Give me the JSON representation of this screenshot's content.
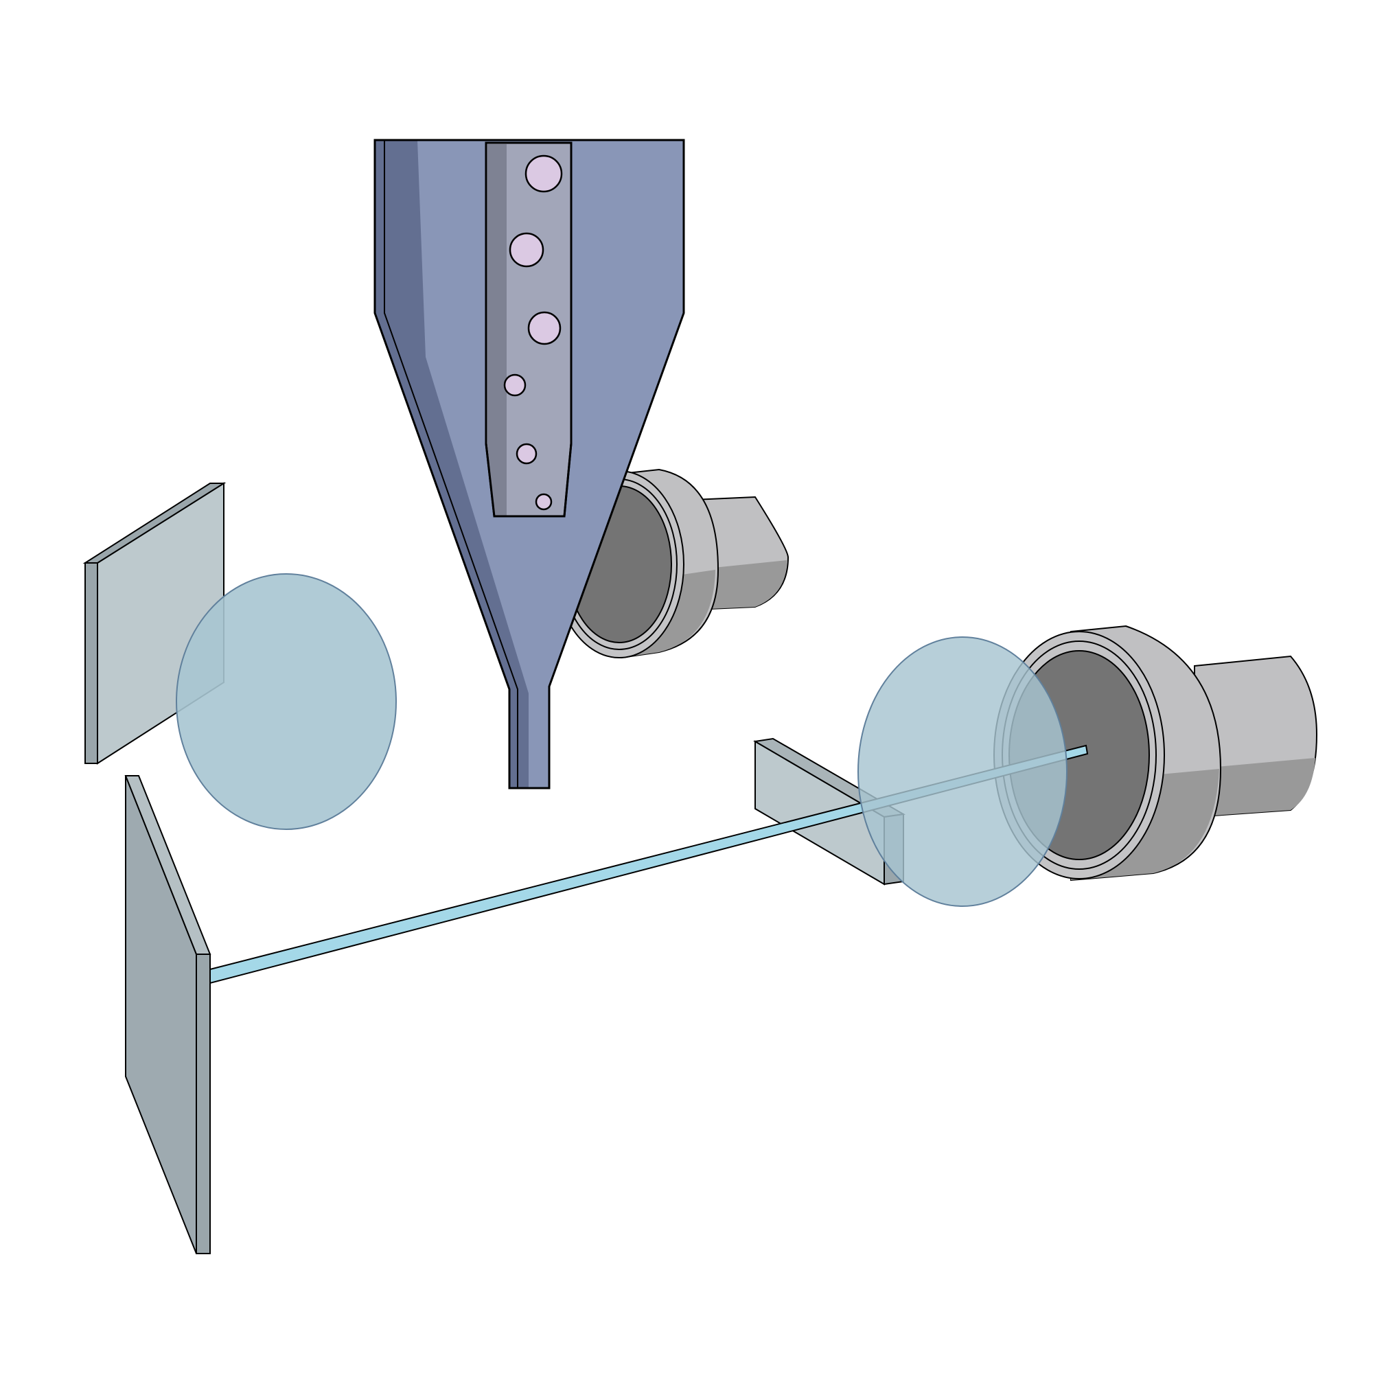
{
  "diagram": {
    "components": [
      {
        "id": "nozzle",
        "kind": "conical-nozzle",
        "particle_count": 6
      },
      {
        "id": "upper-objective",
        "kind": "microscope-objective"
      },
      {
        "id": "right-objective",
        "kind": "microscope-objective"
      },
      {
        "id": "upper-left-plate",
        "kind": "flat-plate"
      },
      {
        "id": "lower-left-mirror",
        "kind": "flat-mirror"
      },
      {
        "id": "middle-plate",
        "kind": "rectangular-block"
      },
      {
        "id": "left-lens",
        "kind": "translucent-disc"
      },
      {
        "id": "right-lens",
        "kind": "translucent-disc"
      },
      {
        "id": "laser-beam",
        "kind": "beam"
      }
    ]
  },
  "colors": {
    "nozzle_body": "#8996b7",
    "nozzle_shadow": "#636f91",
    "nozzle_channel": "#a2a6b9",
    "channel_shadow": "#7e8293",
    "particle": "#dbc9e3",
    "objective_body": "#c0c0c2",
    "objective_shade": "#999999",
    "objective_inner": "#747474",
    "plate_face": "#bdc9cd",
    "plate_edge": "#9aa6ab",
    "mirror_face": "#9eaab0",
    "lens": "#a7c5d1",
    "lens_stroke": "#60809c",
    "beam": "#a4d8e8"
  }
}
